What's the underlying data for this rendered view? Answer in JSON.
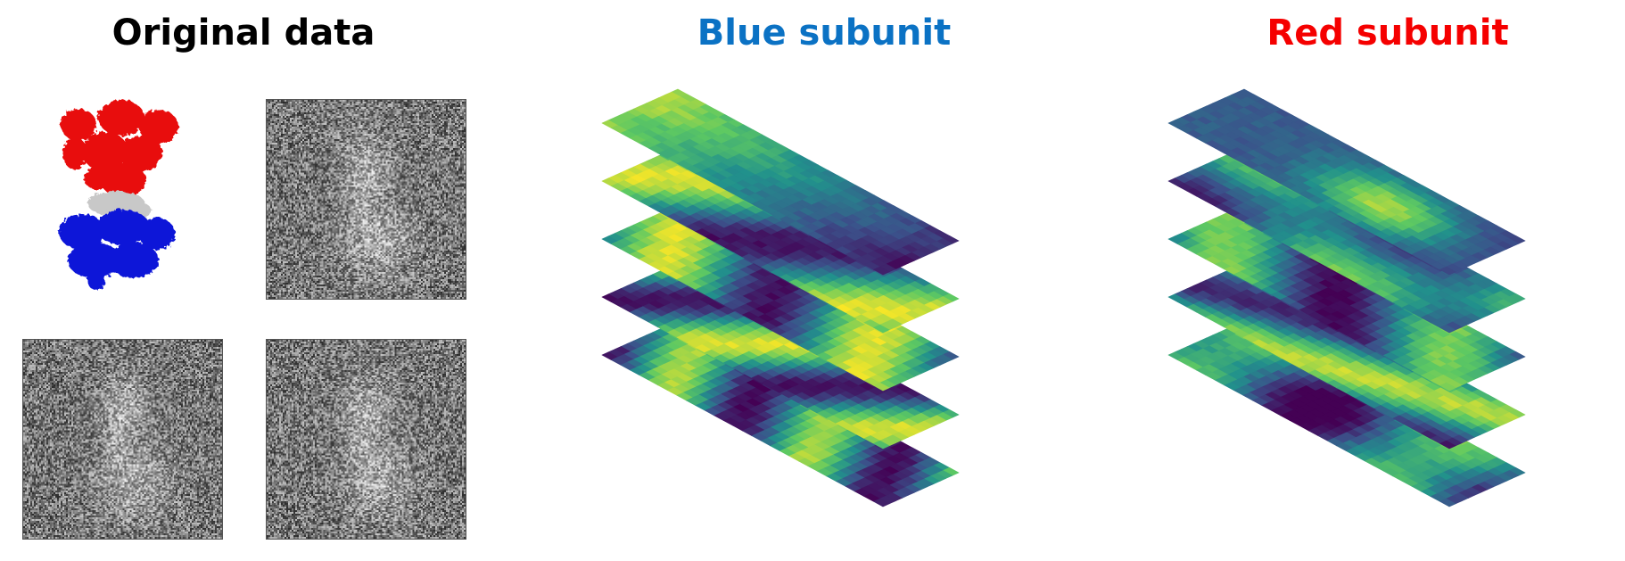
{
  "panels": {
    "original": {
      "title": "Original data",
      "color": "#000000"
    },
    "blue": {
      "title": "Blue subunit",
      "color": "#0b72c4"
    },
    "red": {
      "title": "Red subunit",
      "color": "#f50000"
    }
  },
  "colors": {
    "red_domain": "#e80b0b",
    "blue_domain": "#0f18d8",
    "linker": "#c8c8c8",
    "viridis": [
      "#440154",
      "#3b528b",
      "#21918c",
      "#5ec962",
      "#fde725"
    ]
  },
  "icons": {
    "structure": "protein-structure-image",
    "micrographs": "noisy-projection-image"
  }
}
